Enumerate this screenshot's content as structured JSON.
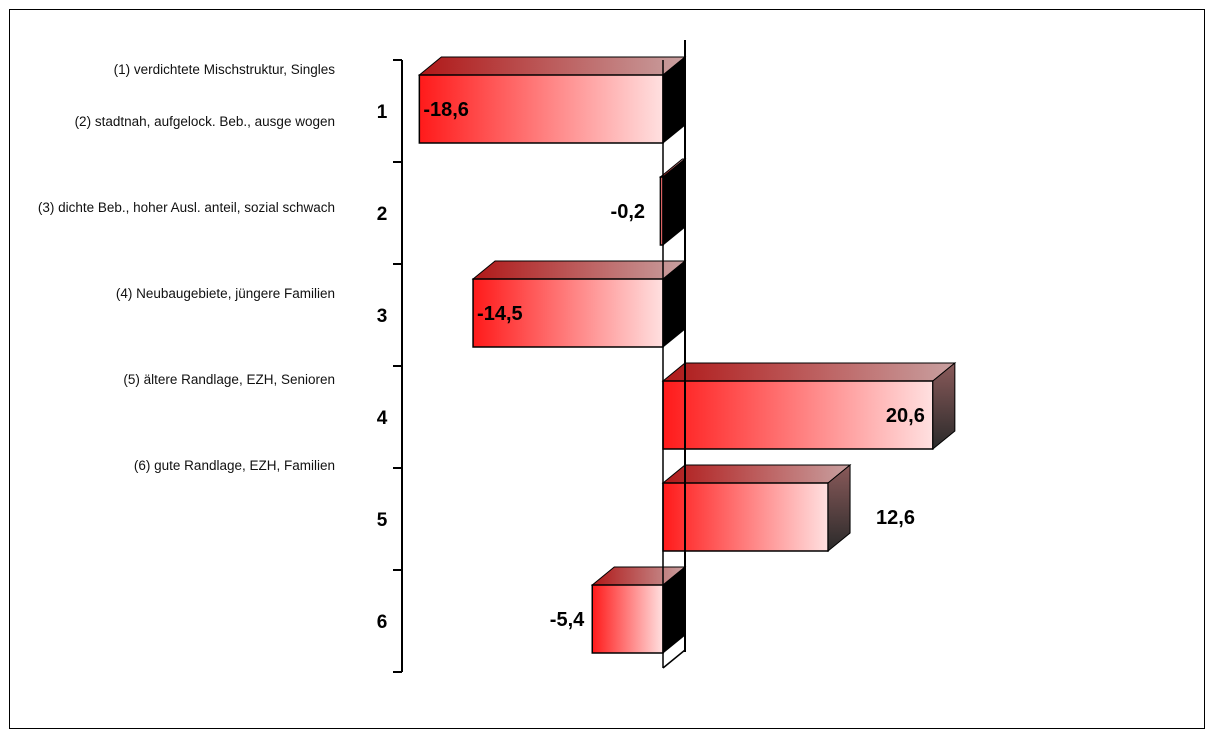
{
  "legend": {
    "items": [
      "(1) verdichtete Mischstruktur, Singles",
      "(2) stadtnah, aufgelock. Beb., ausge wogen",
      "(3) dichte Beb., hoher Ausl. anteil, sozial schwach",
      "(4) Neubaugebiete, jüngere Familien",
      "(5) ältere Randlage, EZH, Senioren",
      "(6) gute Randlage, EZH, Familien"
    ]
  },
  "chart_data": {
    "type": "bar",
    "orientation": "horizontal",
    "style": "3d",
    "categories": [
      "1",
      "2",
      "3",
      "4",
      "5",
      "6"
    ],
    "values": [
      -18.6,
      -0.2,
      -14.5,
      20.6,
      12.6,
      -5.4
    ],
    "value_labels": [
      "-18,6",
      "-0,2",
      "-14,5",
      "20,6",
      "12,6",
      "-5,4"
    ],
    "xlim": [
      -20,
      22
    ],
    "grid": false,
    "legend_position": "left",
    "colors": {
      "bar_front": "#ff1a1a",
      "bar_front_light": "#ffe0e0",
      "bar_top": "#9a3030",
      "bar_side": "#444444",
      "zero_axis": "#000000"
    }
  }
}
